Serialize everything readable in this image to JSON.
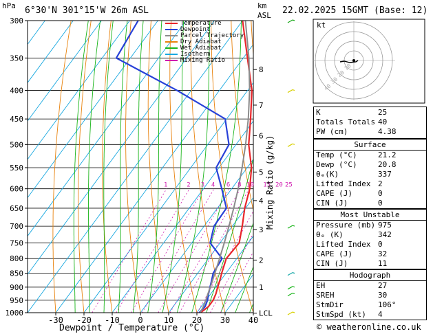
{
  "header": {
    "pressure_unit": "hPa",
    "location": "6°30'N  301°15'W  26m  ASL",
    "km_label": "km",
    "asl_label": "ASL",
    "datetime": "22.02.2025  15GMT  (Base: 12)"
  },
  "legend": {
    "items": [
      {
        "label": "Temperature",
        "color": "#e8262b"
      },
      {
        "label": "Dewpoint",
        "color": "#2841d8"
      },
      {
        "label": "Parcel Trajectory",
        "color": "#8c8c8c"
      },
      {
        "label": "Dry Adiabat",
        "color": "#e8820c"
      },
      {
        "label": "Wet Adiabat",
        "color": "#18b418"
      },
      {
        "label": "Isotherm",
        "color": "#18a8e0"
      },
      {
        "label": "Mixing Ratio",
        "color": "#d01cb0"
      }
    ]
  },
  "chart_data": {
    "type": "line",
    "xlabel": "Dewpoint / Temperature (°C)",
    "ylabel": "Mixing Ratio (g/kg)",
    "x_ticks": [
      -30,
      -20,
      -10,
      0,
      10,
      20,
      30,
      40
    ],
    "pressure_ticks": [
      300,
      350,
      400,
      450,
      500,
      550,
      600,
      650,
      700,
      750,
      800,
      850,
      900,
      950,
      1000
    ],
    "km_ticks": [
      {
        "label": "8",
        "p": 367
      },
      {
        "label": "7",
        "p": 425
      },
      {
        "label": "6",
        "p": 482
      },
      {
        "label": "5",
        "p": 560
      },
      {
        "label": "4",
        "p": 630
      },
      {
        "label": "3",
        "p": 710
      },
      {
        "label": "2",
        "p": 805
      },
      {
        "label": "1",
        "p": 900
      },
      {
        "label": "LCL",
        "p": 1002
      }
    ],
    "mixing_ratio_labels": [
      "1",
      "2",
      "3",
      "4",
      "6",
      "8",
      "10",
      "15",
      "20",
      "25"
    ],
    "series": [
      {
        "name": "Temperature",
        "color": "#e8262b",
        "points": [
          [
            21.3,
            1000
          ],
          [
            22.5,
            975
          ],
          [
            22.5,
            950
          ],
          [
            21.8,
            925
          ],
          [
            20.7,
            900
          ],
          [
            19.7,
            875
          ],
          [
            18.5,
            850
          ],
          [
            16.3,
            800
          ],
          [
            16.8,
            750
          ],
          [
            13.5,
            700
          ],
          [
            9.7,
            650
          ],
          [
            6.4,
            600
          ],
          [
            1.5,
            550
          ],
          [
            -5.5,
            500
          ],
          [
            -11.5,
            450
          ],
          [
            -18.5,
            400
          ],
          [
            -28.5,
            350
          ],
          [
            -40,
            300
          ]
        ]
      },
      {
        "name": "Dewpoint",
        "color": "#2841d8",
        "points": [
          [
            20.8,
            1000
          ],
          [
            21.3,
            975
          ],
          [
            20.5,
            950
          ],
          [
            19.2,
            925
          ],
          [
            18,
            900
          ],
          [
            16.8,
            875
          ],
          [
            15.5,
            850
          ],
          [
            14.8,
            800
          ],
          [
            6.5,
            750
          ],
          [
            3.5,
            700
          ],
          [
            3.2,
            650
          ],
          [
            -3.5,
            600
          ],
          [
            -11,
            550
          ],
          [
            -12.5,
            500
          ],
          [
            -20.5,
            450
          ],
          [
            -45,
            400
          ],
          [
            -75,
            350
          ],
          [
            -77,
            300
          ]
        ]
      },
      {
        "name": "Parcel Trajectory",
        "color": "#8c8c8c",
        "points": [
          [
            21.2,
            1000
          ],
          [
            20.7,
            975
          ],
          [
            19.9,
            950
          ],
          [
            19,
            925
          ],
          [
            18.1,
            900
          ],
          [
            17.1,
            875
          ],
          [
            16.1,
            850
          ],
          [
            13.9,
            800
          ],
          [
            11.5,
            750
          ],
          [
            8.8,
            700
          ],
          [
            5.8,
            650
          ],
          [
            2.3,
            600
          ],
          [
            -1.8,
            550
          ],
          [
            -6.6,
            500
          ],
          [
            -12.3,
            450
          ],
          [
            -19.3,
            400
          ],
          [
            -28,
            350
          ],
          [
            -39,
            300
          ]
        ]
      }
    ],
    "wind_barbs": [
      {
        "p": 300,
        "color": "#18a818"
      },
      {
        "p": 400,
        "color": "#d8d000"
      },
      {
        "p": 500,
        "color": "#d8d000"
      },
      {
        "p": 700,
        "color": "#18b418"
      },
      {
        "p": 850,
        "color": "#18a8a8"
      },
      {
        "p": 900,
        "color": "#18b418"
      },
      {
        "p": 925,
        "color": "#18b418"
      },
      {
        "p": 1000,
        "color": "#d8d000"
      }
    ]
  },
  "hodograph": {
    "label": "kt",
    "ring_labels": [
      "10",
      "20",
      "30",
      "40"
    ]
  },
  "indices": {
    "top": [
      {
        "label": "K",
        "value": "25"
      },
      {
        "label": "Totals Totals",
        "value": "40"
      },
      {
        "label": "PW (cm)",
        "value": "4.38"
      }
    ],
    "surface": {
      "title": "Surface",
      "rows": [
        {
          "label": "Temp (°C)",
          "value": "21.2"
        },
        {
          "label": "Dewp (°C)",
          "value": "20.8"
        },
        {
          "label": "θₑ(K)",
          "value": "337"
        },
        {
          "label": "Lifted Index",
          "value": "2"
        },
        {
          "label": "CAPE (J)",
          "value": "0"
        },
        {
          "label": "CIN (J)",
          "value": "0"
        }
      ]
    },
    "most_unstable": {
      "title": "Most Unstable",
      "rows": [
        {
          "label": "Pressure (mb)",
          "value": "975"
        },
        {
          "label": "θₑ (K)",
          "value": "342"
        },
        {
          "label": "Lifted Index",
          "value": "0"
        },
        {
          "label": "CAPE (J)",
          "value": "32"
        },
        {
          "label": "CIN (J)",
          "value": "11"
        }
      ]
    },
    "hodograph": {
      "title": "Hodograph",
      "rows": [
        {
          "label": "EH",
          "value": "27"
        },
        {
          "label": "SREH",
          "value": "30"
        },
        {
          "label": "StmDir",
          "value": "106°"
        },
        {
          "label": "StmSpd (kt)",
          "value": "4"
        }
      ]
    }
  },
  "footer": {
    "copyright": "© weatheronline.co.uk"
  }
}
